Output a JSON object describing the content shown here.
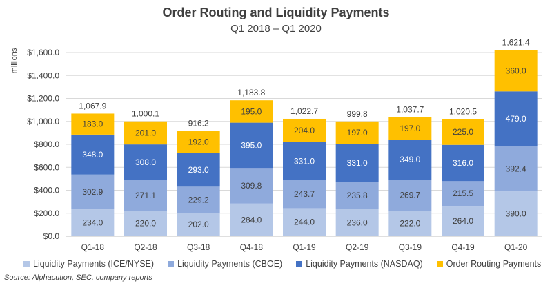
{
  "chart_data": {
    "type": "bar",
    "stacked": true,
    "title": "Order Routing and Liquidity Payments",
    "subtitle": "Q1 2018 – Q1 2020",
    "ylabel": "millions",
    "xlabel": "",
    "ylim": [
      0,
      1700
    ],
    "yticks": [
      0,
      200,
      400,
      600,
      800,
      1000,
      1200,
      1400,
      1600
    ],
    "ytick_labels": [
      "$0.0",
      "$200.0",
      "$400.0",
      "$600.0",
      "$800.0",
      "$1,000.0",
      "$1,200.0",
      "$1,400.0",
      "$1,600.0"
    ],
    "grid": true,
    "legend_position": "bottom",
    "categories": [
      "Q1-18",
      "Q2-18",
      "Q3-18",
      "Q4-18",
      "Q1-19",
      "Q2-19",
      "Q3-19",
      "Q4-19",
      "Q1-20"
    ],
    "series": [
      {
        "name": "Liquidity Payments (ICE/NYSE)",
        "color": "#b4c7e7",
        "values": [
          234.0,
          220.0,
          202.0,
          284.0,
          244.0,
          236.0,
          222.0,
          264.0,
          390.0
        ],
        "labels": [
          "234.0",
          "220.0",
          "202.0",
          "284.0",
          "244.0",
          "236.0",
          "222.0",
          "264.0",
          "390.0"
        ]
      },
      {
        "name": "Liquidity Payments (CBOE)",
        "color": "#8faadc",
        "values": [
          302.9,
          271.1,
          229.2,
          309.8,
          243.7,
          235.8,
          269.7,
          215.5,
          392.4
        ],
        "labels": [
          "302.9",
          "271.1",
          "229.2",
          "309.8",
          "243.7",
          "235.8",
          "269.7",
          "215.5",
          "392.4"
        ]
      },
      {
        "name": "Liquidity Payments (NASDAQ)",
        "color": "#4472c4",
        "values": [
          348.0,
          308.0,
          293.0,
          395.0,
          331.0,
          331.0,
          349.0,
          316.0,
          479.0
        ],
        "labels": [
          "348.0",
          "308.0",
          "293.0",
          "395.0",
          "331.0",
          "331.0",
          "349.0",
          "316.0",
          "479.0"
        ]
      },
      {
        "name": "Order Routing Payments",
        "color": "#ffc000",
        "values": [
          183.0,
          201.0,
          192.0,
          195.0,
          204.0,
          197.0,
          197.0,
          225.0,
          360.0
        ],
        "labels": [
          "183.0",
          "201.0",
          "192.0",
          "195.0",
          "204.0",
          "197.0",
          "197.0",
          "225.0",
          "360.0"
        ]
      }
    ],
    "totals": [
      1067.9,
      1000.1,
      916.2,
      1183.8,
      1022.7,
      999.8,
      1037.7,
      1020.5,
      1621.4
    ],
    "total_labels": [
      "1,067.9",
      "1,000.1",
      "916.2",
      "1,183.8",
      "1,022.7",
      "999.8",
      "1,037.7",
      "1,020.5",
      "1,621.4"
    ],
    "source": "Source: Alphacution, SEC, company reports"
  }
}
